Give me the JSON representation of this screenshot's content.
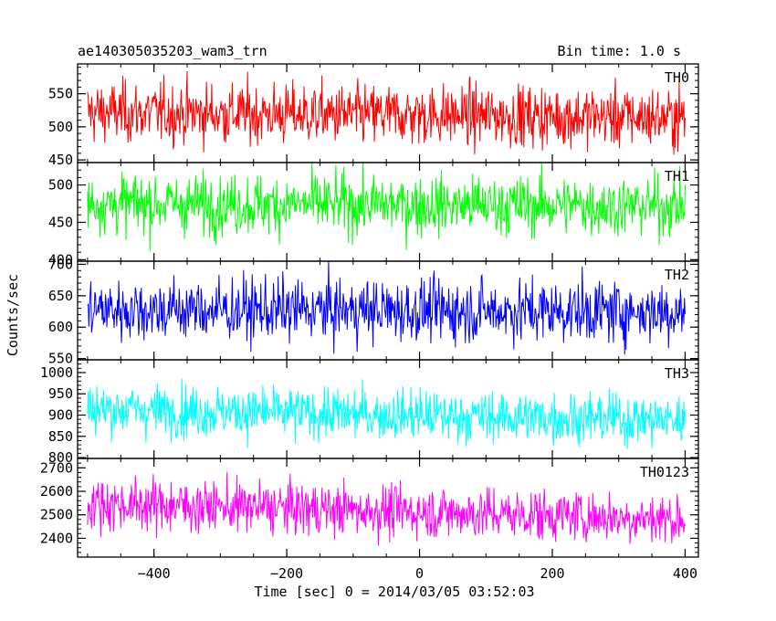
{
  "header": {
    "title": "ae140305035203_wam3_trn",
    "bin_time": "Bin time: 1.0 s"
  },
  "chart_data": {
    "type": "line",
    "title": "ae140305035203_wam3_trn",
    "subtitle": "Bin time: 1.0 s",
    "xlabel": "Time [sec] 0 = 2014/03/05 03:52:03",
    "ylabel": "Counts/sec",
    "xlim": [
      -515,
      420
    ],
    "x_ticks": [
      -400,
      -200,
      0,
      200,
      400
    ],
    "x_tick_labels": [
      "−400",
      "−200",
      "0",
      "200",
      "400"
    ],
    "x_range_data": [
      -500,
      400
    ],
    "grid": false,
    "panels": [
      {
        "name": "TH0",
        "color": "#ff0000",
        "ylim": [
          446,
          595
        ],
        "yticks": [
          450,
          500,
          550
        ],
        "ytick_labels": [
          "450",
          "500",
          "550"
        ],
        "x": [
          -500,
          -400,
          -300,
          -200,
          -100,
          0,
          100,
          200,
          300,
          400
        ],
        "values": [
          522,
          521,
          520,
          519,
          518,
          518,
          517,
          516,
          515,
          514
        ],
        "noise_sd": 23
      },
      {
        "name": "TH1",
        "color": "#00ff00",
        "ylim": [
          398,
          530
        ],
        "yticks": [
          400,
          450,
          500
        ],
        "ytick_labels": [
          "400",
          "450",
          "500"
        ],
        "x": [
          -500,
          -400,
          -300,
          -200,
          -100,
          0,
          100,
          200,
          300,
          400
        ],
        "values": [
          475,
          475,
          474,
          474,
          474,
          473,
          473,
          473,
          472,
          472
        ],
        "noise_sd": 20
      },
      {
        "name": "TH2",
        "color": "#0000ff",
        "ylim": [
          548,
          705
        ],
        "yticks": [
          550,
          600,
          650,
          700
        ],
        "ytick_labels": [
          "550",
          "600",
          "650",
          "700"
        ],
        "x": [
          -500,
          -400,
          -300,
          -200,
          -100,
          0,
          100,
          200,
          300,
          400
        ],
        "values": [
          628,
          628,
          627,
          627,
          627,
          626,
          626,
          626,
          625,
          625
        ],
        "noise_sd": 25
      },
      {
        "name": "TH3",
        "color": "#00ffff",
        "ylim": [
          798,
          1030
        ],
        "yticks": [
          800,
          850,
          900,
          950,
          1000
        ],
        "ytick_labels": [
          "800",
          "850",
          "900",
          "950",
          "1000"
        ],
        "x": [
          -500,
          -400,
          -300,
          -200,
          -100,
          0,
          100,
          200,
          300,
          400
        ],
        "values": [
          915,
          912,
          908,
          905,
          902,
          899,
          896,
          894,
          891,
          888
        ],
        "noise_sd": 30
      },
      {
        "name": "TH0123",
        "color": "#ff00ff",
        "ylim": [
          2320,
          2740
        ],
        "yticks": [
          2400,
          2500,
          2600,
          2700
        ],
        "ytick_labels": [
          "2400",
          "2500",
          "2600",
          "2700"
        ],
        "x": [
          -500,
          -400,
          -300,
          -200,
          -100,
          0,
          100,
          200,
          300,
          400
        ],
        "values": [
          2548,
          2542,
          2535,
          2528,
          2520,
          2512,
          2505,
          2498,
          2490,
          2482
        ],
        "noise_sd": 55
      }
    ]
  }
}
